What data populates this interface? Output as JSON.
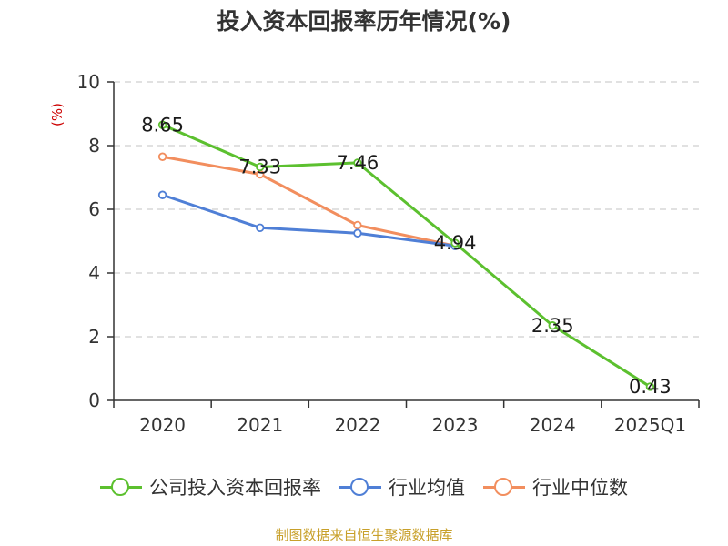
{
  "title": "投入资本回报率历年情况(%)",
  "source": "制图数据来自恒生聚源数据库",
  "chart_data": {
    "type": "line",
    "title": "投入资本回报率历年情况(%)",
    "ylabel": "(%)",
    "xlabel": "",
    "categories": [
      "2020",
      "2021",
      "2022",
      "2023",
      "2024",
      "2025Q1"
    ],
    "ylim": [
      0,
      10
    ],
    "yticks": [
      0,
      2,
      4,
      6,
      8,
      10
    ],
    "grid": "horizontal-dashed",
    "legend_position": "bottom",
    "series": [
      {
        "name": "公司投入资本回报率",
        "color": "#5cc02f",
        "values": [
          8.65,
          7.33,
          7.46,
          4.94,
          2.35,
          0.43
        ],
        "labels": [
          "8.65",
          "7.33",
          "7.46",
          "4.94",
          "2.35",
          "0.43"
        ]
      },
      {
        "name": "行业均值",
        "color": "#4f7fd6",
        "values": [
          6.45,
          5.42,
          5.25,
          4.85,
          null,
          null
        ]
      },
      {
        "name": "行业中位数",
        "color": "#f28e5e",
        "values": [
          7.65,
          7.1,
          5.5,
          4.85,
          null,
          null
        ]
      }
    ]
  }
}
